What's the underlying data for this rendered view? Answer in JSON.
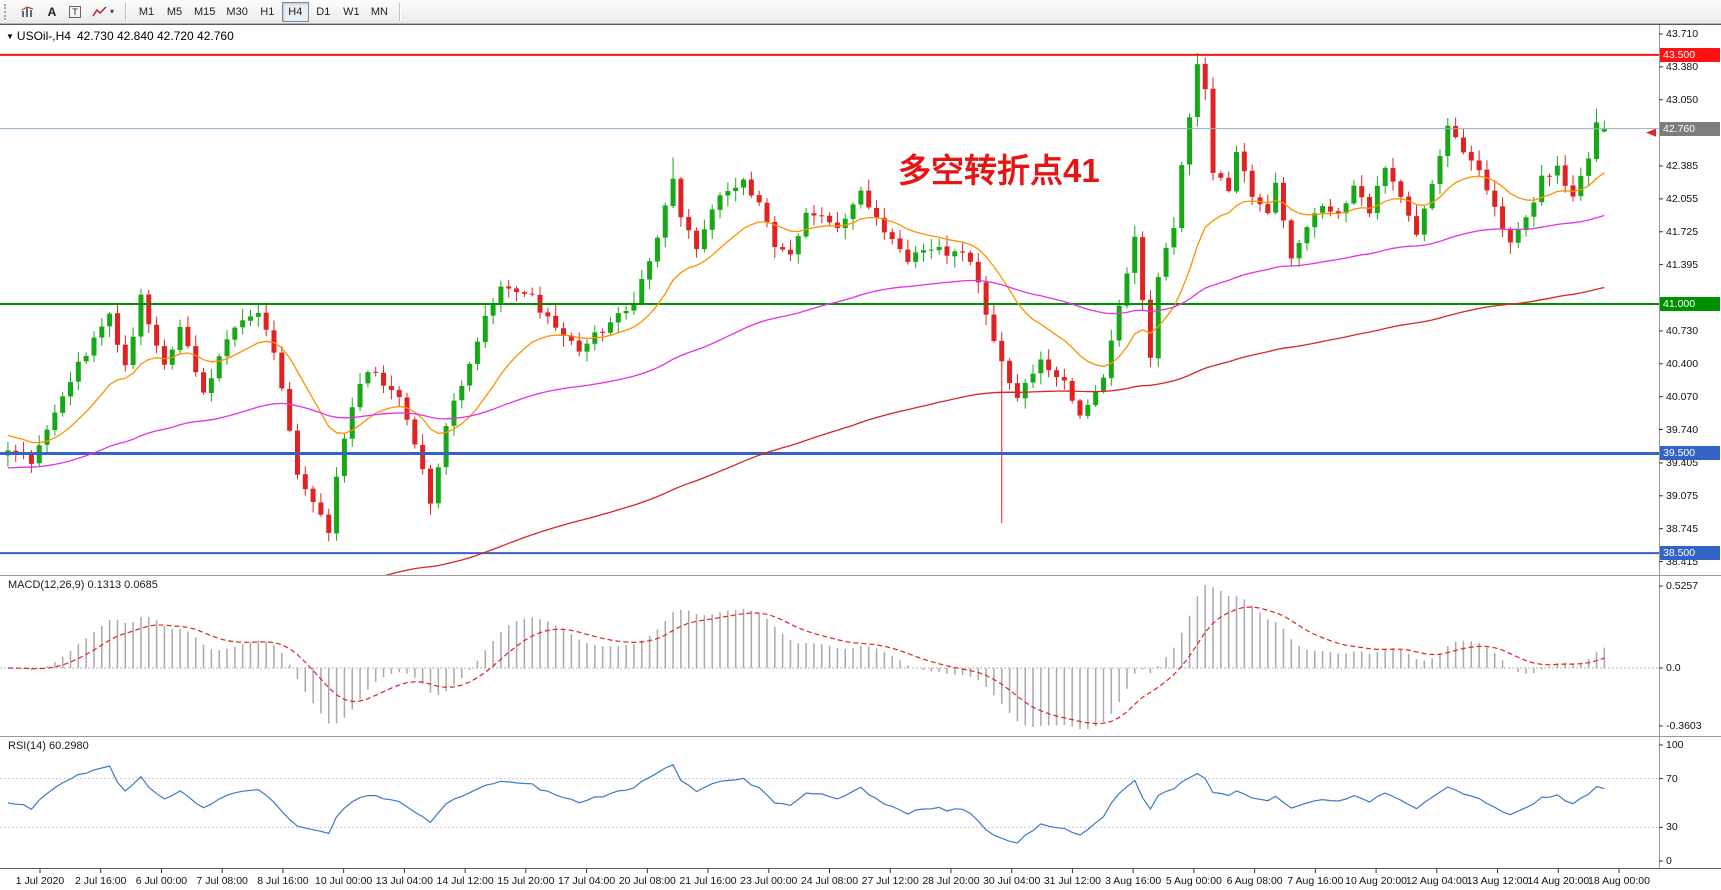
{
  "toolbar": {
    "font_button_label": "A",
    "text_button_label": "T",
    "icons": [
      "bar-chart-icon",
      "font-icon",
      "text-icon",
      "polyline-icon",
      "dropdown-caret-icon"
    ],
    "timeframes": [
      "M1",
      "M5",
      "M15",
      "M30",
      "H1",
      "H4",
      "D1",
      "W1",
      "MN"
    ],
    "active_timeframe": "H4"
  },
  "chart_header": {
    "symbol_period": "USOil-,H4",
    "ohlc_text": "42.730 42.840 42.720 42.760"
  },
  "annotation": {
    "text": "多空转折点41",
    "color": "#e81414"
  },
  "price_axis": {
    "ticks": [
      "43.710",
      "43.380",
      "43.050",
      "42.385",
      "42.055",
      "41.725",
      "41.395",
      "40.730",
      "40.400",
      "40.070",
      "39.740",
      "39.405",
      "39.075",
      "38.745",
      "38.415"
    ],
    "tags": [
      {
        "label": "43.500",
        "bg": "#ff1111"
      },
      {
        "label": "42.760",
        "bg": "#7d7d7d"
      },
      {
        "label": "41.000",
        "bg": "#009100"
      },
      {
        "label": "39.500",
        "bg": "#3363c6"
      },
      {
        "label": "38.500",
        "bg": "#3363c6"
      }
    ]
  },
  "hlines": [
    {
      "price": 43.5,
      "color": "#ff1111",
      "width": 2
    },
    {
      "price": 42.76,
      "color": "#8fb0c3",
      "width": 1
    },
    {
      "price": 41.0,
      "color": "#009100",
      "width": 2
    },
    {
      "price": 39.5,
      "color": "#3363c6",
      "width": 3
    },
    {
      "price": 38.5,
      "color": "#3363c6",
      "width": 2
    }
  ],
  "macd_panel": {
    "label": "MACD(12,26,9) 0.1313 0.0685",
    "axis_max": "0.5257",
    "axis_zero": "0.0",
    "axis_min": "-0.3603"
  },
  "rsi_panel": {
    "label": "RSI(14) 60.2980",
    "axis": [
      "100",
      "70",
      "30",
      "0"
    ]
  },
  "time_axis": {
    "labels": [
      "1 Jul 2020",
      "2 Jul 16:00",
      "6 Jul 00:00",
      "7 Jul 08:00",
      "8 Jul 16:00",
      "10 Jul 00:00",
      "13 Jul 04:00",
      "14 Jul 12:00",
      "15 Jul 20:00",
      "17 Jul 04:00",
      "20 Jul 08:00",
      "21 Jul 16:00",
      "23 Jul 00:00",
      "24 Jul 08:00",
      "27 Jul 12:00",
      "28 Jul 20:00",
      "30 Jul 04:00",
      "31 Jul 12:00",
      "3 Aug 16:00",
      "5 Aug 00:00",
      "6 Aug 08:00",
      "7 Aug 16:00",
      "10 Aug 20:00",
      "12 Aug 04:00",
      "13 Aug 12:00",
      "14 Aug 20:00",
      "18 Aug 00:00"
    ]
  },
  "chart_data": {
    "type": "candlestick",
    "symbol": "USOil-",
    "period": "H4",
    "last_ohlc": {
      "open": 42.73,
      "high": 42.84,
      "low": 42.72,
      "close": 42.76
    },
    "visible_price_range": [
      38.28,
      43.8
    ],
    "n_candles": 205,
    "up_color": "#17a817",
    "down_color": "#e02222",
    "price_anchors": [
      [
        0,
        39.55
      ],
      [
        3,
        39.42
      ],
      [
        8,
        40.25
      ],
      [
        13,
        40.9
      ],
      [
        15,
        40.35
      ],
      [
        17,
        41.05
      ],
      [
        20,
        40.35
      ],
      [
        22,
        40.8
      ],
      [
        25,
        40.1
      ],
      [
        29,
        40.8
      ],
      [
        32,
        40.95
      ],
      [
        34,
        40.55
      ],
      [
        37,
        39.3
      ],
      [
        41,
        38.7
      ],
      [
        42,
        39.3
      ],
      [
        44,
        40.0
      ],
      [
        46,
        40.35
      ],
      [
        50,
        40.05
      ],
      [
        52,
        39.6
      ],
      [
        54,
        39.0
      ],
      [
        56,
        39.8
      ],
      [
        59,
        40.4
      ],
      [
        61,
        40.9
      ],
      [
        63,
        41.15
      ],
      [
        67,
        41.05
      ],
      [
        70,
        40.75
      ],
      [
        73,
        40.55
      ],
      [
        77,
        40.8
      ],
      [
        80,
        41.0
      ],
      [
        83,
        41.7
      ],
      [
        85,
        42.3
      ],
      [
        86,
        41.9
      ],
      [
        88,
        41.55
      ],
      [
        91,
        42.1
      ],
      [
        94,
        42.25
      ],
      [
        96,
        42.0
      ],
      [
        98,
        41.6
      ],
      [
        100,
        41.5
      ],
      [
        102,
        41.95
      ],
      [
        106,
        41.8
      ],
      [
        109,
        42.1
      ],
      [
        112,
        41.75
      ],
      [
        115,
        41.45
      ],
      [
        119,
        41.55
      ],
      [
        123,
        41.45
      ],
      [
        127,
        40.4
      ],
      [
        129,
        40.1
      ],
      [
        132,
        40.4
      ],
      [
        135,
        40.2
      ],
      [
        137,
        39.85
      ],
      [
        139,
        40.15
      ],
      [
        140,
        40.3
      ],
      [
        142,
        41.0
      ],
      [
        144,
        41.7
      ],
      [
        146,
        40.45
      ],
      [
        147,
        41.3
      ],
      [
        149,
        41.8
      ],
      [
        151,
        42.9
      ],
      [
        152,
        43.45
      ],
      [
        153,
        43.2
      ],
      [
        154,
        42.3
      ],
      [
        156,
        42.15
      ],
      [
        157,
        42.5
      ],
      [
        159,
        42.1
      ],
      [
        161,
        41.95
      ],
      [
        162,
        42.2
      ],
      [
        164,
        41.5
      ],
      [
        166,
        41.75
      ],
      [
        168,
        42.0
      ],
      [
        170,
        41.9
      ],
      [
        172,
        42.2
      ],
      [
        174,
        41.95
      ],
      [
        176,
        42.35
      ],
      [
        178,
        42.1
      ],
      [
        180,
        41.7
      ],
      [
        182,
        42.2
      ],
      [
        184,
        42.8
      ],
      [
        186,
        42.55
      ],
      [
        188,
        42.35
      ],
      [
        190,
        41.95
      ],
      [
        192,
        41.6
      ],
      [
        194,
        41.85
      ],
      [
        196,
        42.25
      ],
      [
        198,
        42.35
      ],
      [
        200,
        42.1
      ],
      [
        202,
        42.5
      ],
      [
        203,
        42.82
      ],
      [
        204,
        42.76
      ]
    ],
    "wick_events": [
      {
        "i": 3,
        "low": 39.36
      },
      {
        "i": 41,
        "low": 38.62
      },
      {
        "i": 85,
        "high": 42.47
      },
      {
        "i": 127,
        "low": 38.8
      },
      {
        "i": 152,
        "high": 43.52
      },
      {
        "i": 203,
        "high": 42.96
      }
    ],
    "moving_averages": [
      {
        "name": "fast-ma-line",
        "color": "#ff9000",
        "period": 16,
        "init": 39.7
      },
      {
        "name": "mid-ma-line",
        "color": "#e332e3",
        "period": 80,
        "init": 39.35
      },
      {
        "name": "slow-ma-line",
        "color": "#d82626",
        "period": 170,
        "init": 36.8
      }
    ],
    "indicators": {
      "macd": {
        "params": [
          12,
          26,
          9
        ],
        "main_value": 0.1313,
        "signal_value": 0.0685,
        "scale_max": 0.5257,
        "scale_min": -0.3603
      },
      "rsi": {
        "period": 14,
        "value": 60.298,
        "levels": [
          70,
          30
        ]
      }
    }
  }
}
